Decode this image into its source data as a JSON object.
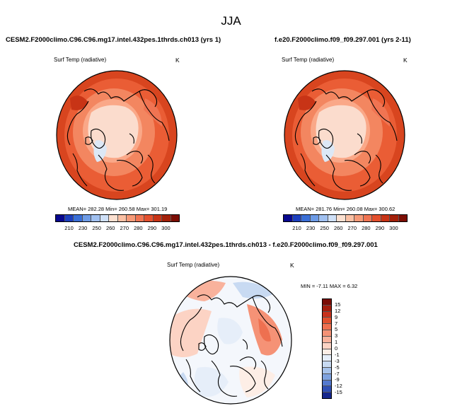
{
  "figure": {
    "title": "JJA",
    "panels": [
      {
        "case": "CESM2.F2000climo.C96.C96.mg17.intel.432pes.1thrds.ch013 (yrs 1)",
        "variable": "Surf Temp (radiative)",
        "units": "K",
        "stats": "MEAN= 282.28  Min= 260.58  Max= 301.19"
      },
      {
        "case": "f.e20.F2000climo.f09_f09.297.001 (yrs 2-11)",
        "variable": "Surf Temp (radiative)",
        "units": "K",
        "stats": "MEAN= 281.76  Min= 260.08  Max= 300.62"
      },
      {
        "case": "CESM2.F2000climo.C96.C96.mg17.intel.432pes.1thrds.ch013 - f.e20.F2000climo.f09_f09.297.001",
        "variable": "Surf Temp (radiative)",
        "units": "K",
        "stats": "MIN =  -7.11 MAX =   6.32"
      }
    ]
  },
  "chart_data": [
    {
      "type": "heatmap",
      "projection": "north-polar-stereographic",
      "title": "CESM2.F2000climo.C96.C96.mg17.intel.432pes.1thrds.ch013 (yrs 1)",
      "variable": "Surf Temp (radiative)",
      "units": "K",
      "mean": 282.28,
      "min": 260.58,
      "max": 301.19,
      "colorbar_ticks": [
        210,
        230,
        250,
        260,
        270,
        280,
        290,
        300
      ],
      "colorbar_colors": [
        "#08088e",
        "#1c3fbe",
        "#3a6fd6",
        "#6d9be6",
        "#a0c0f0",
        "#cfe0f7",
        "#fbe0d0",
        "#fac0a4",
        "#f69a78",
        "#f07452",
        "#e4502e",
        "#c83416",
        "#a32009",
        "#7c0e04"
      ]
    },
    {
      "type": "heatmap",
      "projection": "north-polar-stereographic",
      "title": "f.e20.F2000climo.f09_f09.297.001 (yrs 2-11)",
      "variable": "Surf Temp (radiative)",
      "units": "K",
      "mean": 281.76,
      "min": 260.08,
      "max": 300.62,
      "colorbar_ticks": [
        210,
        230,
        250,
        260,
        270,
        280,
        290,
        300
      ],
      "colorbar_colors": [
        "#08088e",
        "#1c3fbe",
        "#3a6fd6",
        "#6d9be6",
        "#a0c0f0",
        "#cfe0f7",
        "#fbe0d0",
        "#fac0a4",
        "#f69a78",
        "#f07452",
        "#e4502e",
        "#c83416",
        "#a32009",
        "#7c0e04"
      ]
    },
    {
      "type": "heatmap",
      "projection": "north-polar-stereographic",
      "title": "CESM2.F2000climo.C96.C96.mg17.intel.432pes.1thrds.ch013 - f.e20.F2000climo.f09_f09.297.001",
      "variable": "Surf Temp (radiative)",
      "units": "K",
      "min": -7.11,
      "max": 6.32,
      "colorbar_ticks": [
        15,
        12,
        9,
        7,
        5,
        3,
        1,
        0,
        -1,
        -3,
        -5,
        -7,
        -9,
        -12,
        -15
      ],
      "colorbar_colors": [
        "#7a0d06",
        "#a51e0e",
        "#c8321c",
        "#e0502e",
        "#ee7050",
        "#f59276",
        "#f9b29c",
        "#fcd3c4",
        "#fdeee6",
        "#e6eef9",
        "#c8daf2",
        "#a6c2ea",
        "#7ea2df",
        "#5479cf",
        "#2f4fb5",
        "#15268c"
      ]
    }
  ]
}
